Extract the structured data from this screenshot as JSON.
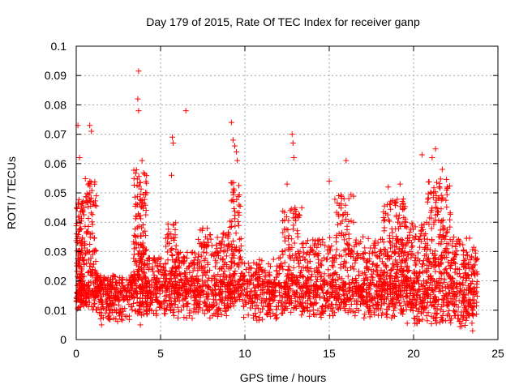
{
  "chart_data": {
    "type": "scatter",
    "title": "Day 179 of 2015, Rate Of TEC Index for receiver ganp",
    "xlabel": "GPS time / hours",
    "ylabel": "ROTI / TECUs",
    "xlim": [
      0,
      25
    ],
    "ylim": [
      0,
      0.1
    ],
    "x_ticks": [
      0,
      5,
      10,
      15,
      20,
      25
    ],
    "y_ticks": [
      0,
      0.01,
      0.02,
      0.03,
      0.04,
      0.05,
      0.06,
      0.07,
      0.08,
      0.09,
      0.1
    ],
    "grid": true,
    "marker": "plus",
    "color": "#ff0000",
    "notable_points": [
      {
        "x": 3.7,
        "y": 0.0915
      },
      {
        "x": 3.65,
        "y": 0.082
      },
      {
        "x": 3.7,
        "y": 0.078
      },
      {
        "x": 6.5,
        "y": 0.078
      },
      {
        "x": 9.2,
        "y": 0.074
      },
      {
        "x": 12.8,
        "y": 0.07
      },
      {
        "x": 12.85,
        "y": 0.067
      },
      {
        "x": 12.9,
        "y": 0.062
      },
      {
        "x": 0.1,
        "y": 0.073
      },
      {
        "x": 0.8,
        "y": 0.073
      },
      {
        "x": 0.9,
        "y": 0.071
      },
      {
        "x": 5.7,
        "y": 0.069
      },
      {
        "x": 5.75,
        "y": 0.067
      },
      {
        "x": 9.3,
        "y": 0.068
      },
      {
        "x": 9.4,
        "y": 0.066
      },
      {
        "x": 9.5,
        "y": 0.064
      },
      {
        "x": 9.55,
        "y": 0.061
      },
      {
        "x": 21.3,
        "y": 0.065
      },
      {
        "x": 20.5,
        "y": 0.063
      },
      {
        "x": 21.1,
        "y": 0.062
      },
      {
        "x": 16.0,
        "y": 0.061
      },
      {
        "x": 5.65,
        "y": 0.056
      },
      {
        "x": 3.9,
        "y": 0.061
      },
      {
        "x": 0.2,
        "y": 0.062
      },
      {
        "x": 15.0,
        "y": 0.054
      },
      {
        "x": 12.5,
        "y": 0.053
      },
      {
        "x": 18.5,
        "y": 0.052
      },
      {
        "x": 19.2,
        "y": 0.053
      },
      {
        "x": 21.7,
        "y": 0.058
      },
      {
        "x": 22.0,
        "y": 0.052
      },
      {
        "x": 3.8,
        "y": 0.005
      },
      {
        "x": 1.5,
        "y": 0.005
      },
      {
        "x": 23.5,
        "y": 0.003
      }
    ],
    "clusters": [
      {
        "x_start": 0.0,
        "x_end": 0.45,
        "y_low": 0.01,
        "y_high": 0.048,
        "count": 160
      },
      {
        "x_start": 0.45,
        "x_end": 1.2,
        "y_low": 0.01,
        "y_high": 0.055,
        "count": 150
      },
      {
        "x_start": 1.2,
        "x_end": 3.4,
        "y_low": 0.006,
        "y_high": 0.022,
        "count": 260
      },
      {
        "x_start": 3.4,
        "x_end": 4.2,
        "y_low": 0.008,
        "y_high": 0.058,
        "count": 220
      },
      {
        "x_start": 4.2,
        "x_end": 5.3,
        "y_low": 0.008,
        "y_high": 0.028,
        "count": 140
      },
      {
        "x_start": 5.3,
        "x_end": 6.0,
        "y_low": 0.008,
        "y_high": 0.04,
        "count": 120
      },
      {
        "x_start": 6.0,
        "x_end": 7.2,
        "y_low": 0.007,
        "y_high": 0.03,
        "count": 160
      },
      {
        "x_start": 7.2,
        "x_end": 9.0,
        "y_low": 0.007,
        "y_high": 0.038,
        "count": 260
      },
      {
        "x_start": 9.0,
        "x_end": 9.8,
        "y_low": 0.01,
        "y_high": 0.055,
        "count": 150
      },
      {
        "x_start": 9.8,
        "x_end": 12.2,
        "y_low": 0.006,
        "y_high": 0.028,
        "count": 250
      },
      {
        "x_start": 12.2,
        "x_end": 13.4,
        "y_low": 0.008,
        "y_high": 0.045,
        "count": 180
      },
      {
        "x_start": 13.4,
        "x_end": 15.3,
        "y_low": 0.007,
        "y_high": 0.035,
        "count": 250
      },
      {
        "x_start": 15.3,
        "x_end": 16.5,
        "y_low": 0.008,
        "y_high": 0.05,
        "count": 170
      },
      {
        "x_start": 16.5,
        "x_end": 18.2,
        "y_low": 0.007,
        "y_high": 0.035,
        "count": 230
      },
      {
        "x_start": 18.2,
        "x_end": 19.6,
        "y_low": 0.007,
        "y_high": 0.048,
        "count": 280
      },
      {
        "x_start": 19.6,
        "x_end": 20.8,
        "y_low": 0.005,
        "y_high": 0.04,
        "count": 200
      },
      {
        "x_start": 20.8,
        "x_end": 22.2,
        "y_low": 0.005,
        "y_high": 0.055,
        "count": 260
      },
      {
        "x_start": 22.2,
        "x_end": 23.8,
        "y_low": 0.004,
        "y_high": 0.035,
        "count": 230
      }
    ]
  }
}
